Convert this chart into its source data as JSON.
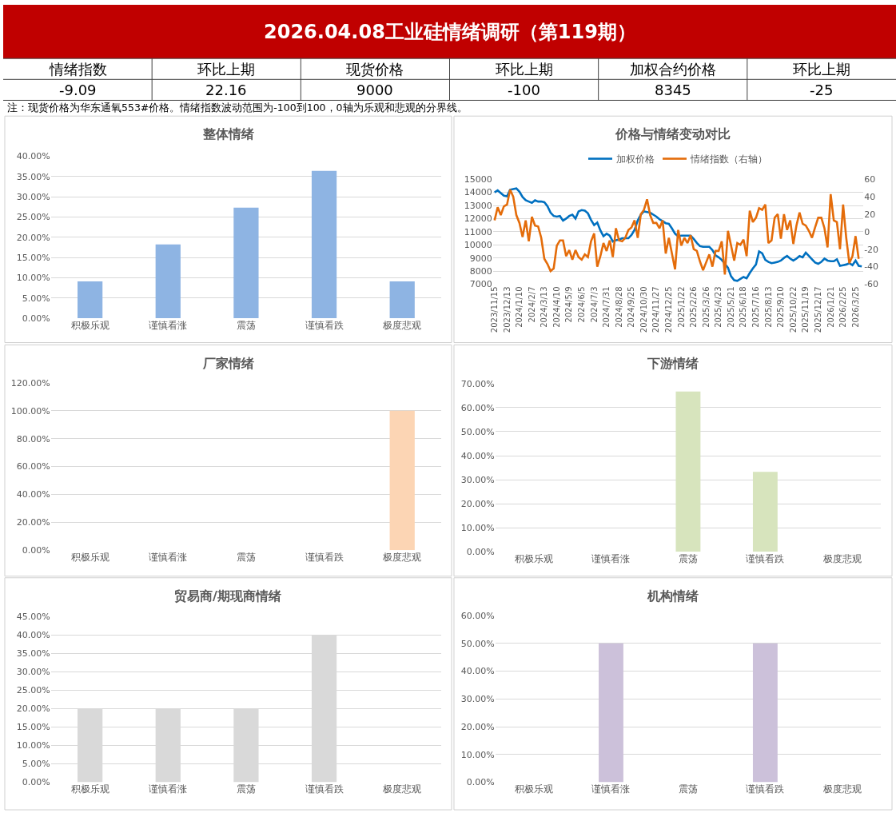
{
  "chart_data": [
    {
      "type": "other",
      "title": "2026.04.08工业硅情绪调研（第119期）",
      "categories": [
        "情绪指数",
        "环比上期",
        "现货价格",
        "环比上期",
        "加权合约价格",
        "环比上期"
      ],
      "values": [
        -9.09,
        22.16,
        9000,
        -100,
        8345,
        -25
      ],
      "data_labels": true,
      "annotations": [
        "注：现货价格为华东通氧553#价格。情绪指数波动范围为-100到100，0轴为乐观和悲观的分界线。"
      ]
    },
    {
      "type": "bar",
      "title": "整体情绪",
      "categories": [
        "积极乐观",
        "谨慎看涨",
        "震荡",
        "谨慎看跌",
        "极度悲观"
      ],
      "values": [
        9.1,
        18.2,
        27.3,
        36.4,
        9.1
      ],
      "color": "#8eb4e3",
      "ylim": [
        0,
        40
      ],
      "yticks": [
        {
          "value": 0,
          "label": "0.00%"
        },
        {
          "value": 5,
          "label": "5.00%"
        },
        {
          "value": 10,
          "label": "10.00%"
        },
        {
          "value": 15,
          "label": "15.00%"
        },
        {
          "value": 20,
          "label": "20.00%"
        },
        {
          "value": 25,
          "label": "25.00%"
        },
        {
          "value": 30,
          "label": "30.00%"
        },
        {
          "value": 35,
          "label": "35.00%"
        },
        {
          "value": 40,
          "label": "40.00%"
        }
      ],
      "grid": "y"
    },
    {
      "type": "line",
      "title": "价格与情绪变动对比",
      "categories": [
        "2023/11/15",
        null,
        null,
        null,
        "2023/12/13",
        null,
        null,
        null,
        "2024/1/10",
        null,
        null,
        null,
        "2024/2/7",
        null,
        null,
        null,
        "2024/3/13",
        null,
        null,
        null,
        "2024/4/10",
        null,
        null,
        null,
        "2024/5/9",
        null,
        null,
        null,
        "2024/6/5",
        null,
        null,
        null,
        "2024/7/3",
        null,
        null,
        null,
        "2024/7/31",
        null,
        null,
        null,
        "2024/8/28",
        null,
        null,
        null,
        "2024/9/25",
        null,
        null,
        null,
        "2024/10/30",
        null,
        null,
        null,
        "2024/11/27",
        null,
        null,
        null,
        "2024/12/25",
        null,
        null,
        null,
        "2025/1/22",
        null,
        null,
        null,
        "2025/2/26",
        null,
        null,
        null,
        "2025/3/26",
        null,
        null,
        null,
        "2025/4/23",
        null,
        null,
        null,
        "2025/5/21",
        null,
        null,
        null,
        "2025/6/18",
        null,
        null,
        null,
        "2025/7/16",
        null,
        null,
        null,
        "2025/8/13",
        null,
        null,
        null,
        "2025/9/10",
        null,
        null,
        null,
        "2025/10/22",
        null,
        null,
        null,
        "2025/11/19",
        null,
        null,
        null,
        "2025/12/17",
        null,
        null,
        null,
        "2026/1/21",
        null,
        null,
        null,
        "2026/2/25",
        null,
        null,
        null,
        "2026/3/25",
        null,
        null
      ],
      "series": [
        {
          "name": "加权价格",
          "color": "#0070c0",
          "values": [
            14000,
            14150,
            13950,
            13750,
            13700,
            14200,
            14250,
            14300,
            14050,
            13650,
            13400,
            13300,
            13200,
            13400,
            13300,
            13300,
            13250,
            12950,
            12450,
            12200,
            12150,
            12200,
            11850,
            12000,
            12200,
            12300,
            12000,
            12550,
            12650,
            12600,
            12400,
            11900,
            11500,
            11700,
            11100,
            10650,
            10850,
            10700,
            10250,
            10350,
            10400,
            10500,
            10500,
            10500,
            10750,
            11150,
            11850,
            12300,
            12550,
            12500,
            12450,
            12300,
            12150,
            11950,
            11800,
            11650,
            11600,
            11250,
            10850,
            10650,
            10700,
            10700,
            10700,
            10700,
            10450,
            10150,
            9900,
            9850,
            9850,
            9850,
            9600,
            9200,
            9050,
            8850,
            8550,
            8250,
            7600,
            7300,
            7250,
            7400,
            7550,
            7450,
            7850,
            8200,
            8500,
            9500,
            9350,
            8850,
            8700,
            8600,
            8650,
            8700,
            8800,
            9000,
            9150,
            8950,
            8800,
            8950,
            9150,
            9050,
            9400,
            9150,
            8900,
            8650,
            8550,
            8700,
            8950,
            8800,
            8750,
            8750,
            8900,
            8400,
            8450,
            8500,
            8600,
            8450,
            8800,
            8400,
            8350
          ]
        },
        {
          "name": "情绪指数（右轴）",
          "color": "#e46c0a",
          "axis": "y2",
          "values": [
            13,
            28,
            19,
            29,
            31,
            48,
            40,
            19,
            10,
            -6,
            13,
            -11,
            17,
            7,
            6,
            -7,
            -31,
            -37,
            -45,
            -42,
            -16,
            -10,
            -10,
            -28,
            -21,
            -32,
            -21,
            -29,
            -32,
            -26,
            -29,
            -11,
            -2,
            -40,
            -28,
            -13,
            -22,
            -10,
            -29,
            4,
            -10,
            -11,
            -7,
            2,
            5,
            13,
            -7,
            20,
            25,
            37,
            19,
            10,
            10,
            4,
            13,
            -25,
            -7,
            -25,
            -43,
            2,
            -16,
            -7,
            -13,
            -4,
            -20,
            -22,
            -34,
            -44,
            -35,
            -26,
            -40,
            -22,
            -22,
            -11,
            -49,
            1,
            -16,
            -33,
            -13,
            -15,
            -9,
            -28,
            24,
            11,
            16,
            27,
            25,
            31,
            -13,
            -10,
            16,
            20,
            -8,
            20,
            2,
            13,
            -14,
            7,
            22,
            9,
            7,
            1,
            -7,
            5,
            16,
            16,
            4,
            -18,
            43,
            13,
            11,
            -20,
            31,
            -7,
            -36,
            -28,
            -5,
            -31,
            null
          ]
        }
      ],
      "ylim": [
        7000,
        15000
      ],
      "yticks": [
        7000,
        8000,
        9000,
        10000,
        11000,
        12000,
        13000,
        14000,
        15000
      ],
      "y2lim": [
        -60,
        60
      ],
      "y2ticks": [
        -60,
        -40,
        -20,
        0,
        20,
        40,
        60
      ],
      "grid": "y",
      "legend": "top"
    },
    {
      "type": "bar",
      "title": "厂家情绪",
      "categories": [
        "积极乐观",
        "谨慎看涨",
        "震荡",
        "谨慎看跌",
        "极度悲观"
      ],
      "values": [
        0,
        0,
        0,
        0,
        100
      ],
      "color": "#fcd5b4",
      "ylim": [
        0,
        120
      ],
      "yticks": [
        {
          "value": 0,
          "label": "0.00%"
        },
        {
          "value": 20,
          "label": "20.00%"
        },
        {
          "value": 40,
          "label": "40.00%"
        },
        {
          "value": 60,
          "label": "60.00%"
        },
        {
          "value": 80,
          "label": "80.00%"
        },
        {
          "value": 100,
          "label": "100.00%"
        },
        {
          "value": 120,
          "label": "120.00%"
        }
      ],
      "grid": "y"
    },
    {
      "type": "bar",
      "title": "下游情绪",
      "categories": [
        "积极乐观",
        "谨慎看涨",
        "震荡",
        "谨慎看跌",
        "极度悲观"
      ],
      "values": [
        0,
        0,
        66.7,
        33.3,
        0
      ],
      "color": "#d7e4bd",
      "ylim": [
        0,
        70
      ],
      "yticks": [
        {
          "value": 0,
          "label": "0.00%"
        },
        {
          "value": 10,
          "label": "10.00%"
        },
        {
          "value": 20,
          "label": "20.00%"
        },
        {
          "value": 30,
          "label": "30.00%"
        },
        {
          "value": 40,
          "label": "40.00%"
        },
        {
          "value": 50,
          "label": "50.00%"
        },
        {
          "value": 60,
          "label": "60.00%"
        },
        {
          "value": 70,
          "label": "70.00%"
        }
      ],
      "grid": "y"
    },
    {
      "type": "bar",
      "title": "贸易商/期现商情绪",
      "categories": [
        "积极乐观",
        "谨慎看涨",
        "震荡",
        "谨慎看跌",
        "极度悲观"
      ],
      "values": [
        20,
        20,
        20,
        40,
        0
      ],
      "color": "#d9d9d9",
      "ylim": [
        0,
        45
      ],
      "yticks": [
        {
          "value": 0,
          "label": "0.00%"
        },
        {
          "value": 5,
          "label": "5.00%"
        },
        {
          "value": 10,
          "label": "10.00%"
        },
        {
          "value": 15,
          "label": "15.00%"
        },
        {
          "value": 20,
          "label": "20.00%"
        },
        {
          "value": 25,
          "label": "25.00%"
        },
        {
          "value": 30,
          "label": "30.00%"
        },
        {
          "value": 35,
          "label": "35.00%"
        },
        {
          "value": 40,
          "label": "40.00%"
        },
        {
          "value": 45,
          "label": "45.00%"
        }
      ],
      "grid": "y"
    },
    {
      "type": "bar",
      "title": "机构情绪",
      "categories": [
        "积极乐观",
        "谨慎看涨",
        "震荡",
        "谨慎看跌",
        "极度悲观"
      ],
      "values": [
        0,
        50,
        0,
        50,
        0
      ],
      "color": "#ccc1da",
      "ylim": [
        0,
        60
      ],
      "yticks": [
        {
          "value": 0,
          "label": "0.00%"
        },
        {
          "value": 10,
          "label": "10.00%"
        },
        {
          "value": 20,
          "label": "20.00%"
        },
        {
          "value": 30,
          "label": "30.00%"
        },
        {
          "value": 40,
          "label": "40.00%"
        },
        {
          "value": 50,
          "label": "50.00%"
        },
        {
          "value": 60,
          "label": "60.00%"
        }
      ],
      "grid": "y"
    }
  ]
}
